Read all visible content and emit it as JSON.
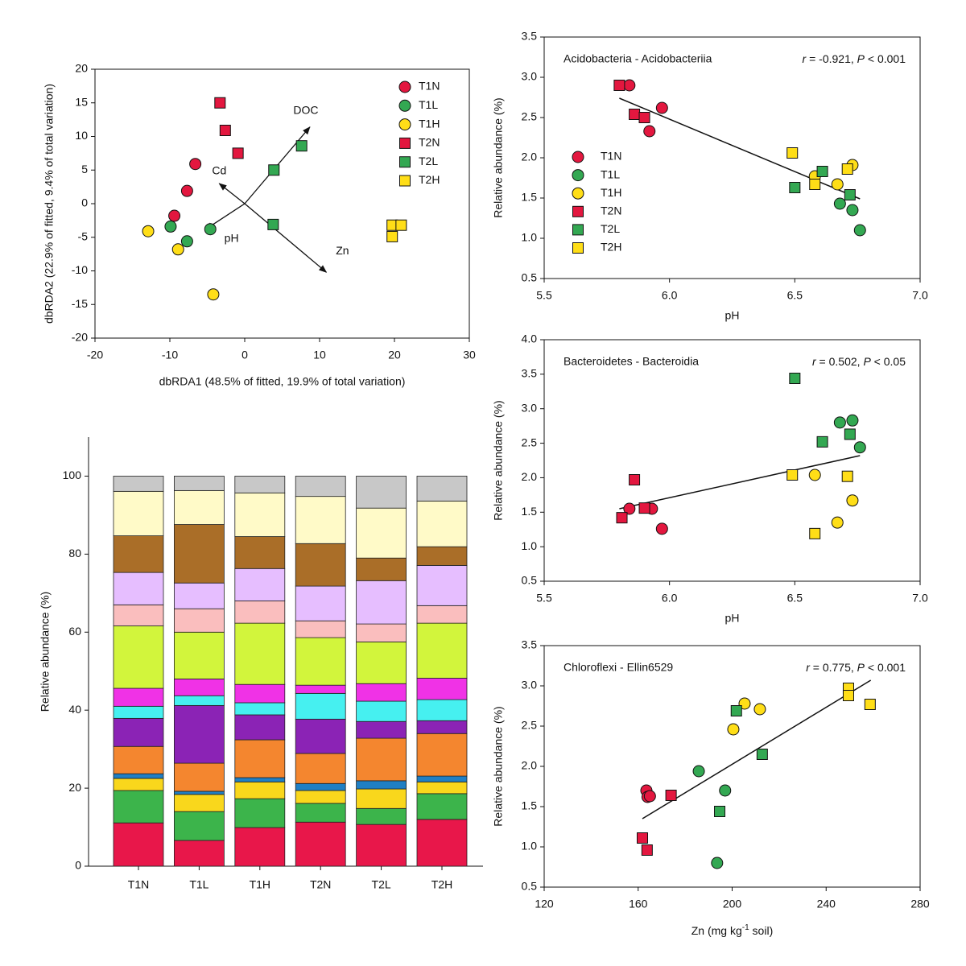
{
  "chart_data": [
    {
      "type": "scatter",
      "xlabel": "dbRDA1 (48.5% of fitted, 19.9% of total variation)",
      "ylabel": "dbRDA2 (22.9% of fitted, 9.4% of total variation)",
      "xlim": [
        -20,
        30
      ],
      "ylim": [
        -20,
        20
      ],
      "xticks": [
        -20,
        -10,
        0,
        10,
        20,
        30
      ],
      "yticks": [
        -20,
        -15,
        -10,
        -5,
        0,
        5,
        10,
        15,
        20
      ],
      "legend": "upper right",
      "series": [
        {
          "name": "T1N",
          "color": "#e3173f",
          "marker": "circle",
          "x": [
            -6.6,
            -7.7,
            -9.4
          ],
          "values": [
            5.9,
            1.9,
            -1.8
          ]
        },
        {
          "name": "T1L",
          "color": "#33a852",
          "marker": "circle",
          "x": [
            -9.9,
            -7.7,
            -4.6
          ],
          "values": [
            -3.4,
            -5.6,
            -3.8
          ]
        },
        {
          "name": "T1H",
          "color": "#ffde17",
          "marker": "circle",
          "x": [
            -12.9,
            -8.9,
            -4.2
          ],
          "values": [
            -4.1,
            -6.8,
            -13.5
          ]
        },
        {
          "name": "T2N",
          "color": "#e3173f",
          "marker": "square",
          "x": [
            -3.3,
            -2.6,
            -0.9
          ],
          "values": [
            15.0,
            10.9,
            7.5
          ]
        },
        {
          "name": "T2L",
          "color": "#33a852",
          "marker": "square",
          "x": [
            7.6,
            3.9,
            3.8
          ],
          "values": [
            8.6,
            5.0,
            -3.1
          ]
        },
        {
          "name": "T2H",
          "color": "#ffde17",
          "marker": "square",
          "x": [
            19.7,
            20.9,
            19.7
          ],
          "values": [
            -3.2,
            -3.2,
            -4.9
          ]
        }
      ],
      "arrows": [
        {
          "label": "DOC",
          "x": 8.7,
          "y": 11.4
        },
        {
          "label": "Cd",
          "x": -3.4,
          "y": 3.0
        },
        {
          "label": "pH",
          "x": -5.2,
          "y": -3.8
        },
        {
          "label": "Zn",
          "x": 10.9,
          "y": -10.2
        }
      ]
    },
    {
      "type": "bar",
      "stacked": true,
      "ylabel": "Relative abundance (%)",
      "ylim": [
        0,
        110
      ],
      "yticks": [
        0,
        20,
        40,
        60,
        80,
        100
      ],
      "categories": [
        "T1N",
        "T1L",
        "T1H",
        "T2N",
        "T2L",
        "T2H"
      ],
      "series": [
        {
          "color": "#e8174a",
          "values": [
            11.1,
            6.6,
            9.9,
            11.3,
            10.7,
            12.0
          ]
        },
        {
          "color": "#3cb44b",
          "values": [
            8.3,
            7.4,
            7.4,
            4.8,
            4.1,
            6.6
          ]
        },
        {
          "color": "#f9d71c",
          "values": [
            3.1,
            4.4,
            4.3,
            3.3,
            5.0,
            3.0
          ]
        },
        {
          "color": "#1f7fc4",
          "values": [
            1.2,
            0.8,
            1.1,
            1.8,
            2.1,
            1.5
          ]
        },
        {
          "color": "#f4862f",
          "values": [
            7.0,
            7.2,
            9.7,
            7.7,
            10.9,
            10.9
          ]
        },
        {
          "color": "#8b23b5",
          "values": [
            7.2,
            14.8,
            6.4,
            8.8,
            4.3,
            3.3
          ]
        },
        {
          "color": "#46f0f0",
          "values": [
            3.1,
            2.5,
            3.1,
            6.6,
            5.2,
            5.4
          ]
        },
        {
          "color": "#f032e6",
          "values": [
            4.6,
            4.3,
            4.7,
            2.1,
            4.5,
            5.5
          ]
        },
        {
          "color": "#d2f53c",
          "values": [
            16.0,
            12.0,
            15.7,
            12.2,
            10.7,
            14.1
          ]
        },
        {
          "color": "#fabebe",
          "values": [
            5.4,
            6.0,
            5.7,
            4.3,
            4.6,
            4.5
          ]
        },
        {
          "color": "#e6beff",
          "values": [
            8.3,
            6.6,
            8.3,
            8.9,
            11.1,
            10.3
          ]
        },
        {
          "color": "#aa6e28",
          "values": [
            9.4,
            15.0,
            8.2,
            10.9,
            5.8,
            4.8
          ]
        },
        {
          "color": "#fffac8",
          "values": [
            11.4,
            8.7,
            11.2,
            12.1,
            12.8,
            11.7
          ]
        },
        {
          "color": "#c8c8c8",
          "values": [
            3.9,
            3.7,
            4.3,
            5.2,
            8.2,
            6.4
          ]
        }
      ]
    },
    {
      "type": "scatter",
      "title": "Acidobacteria - Acidobacteriia",
      "stat": [
        "r",
        " = -0.921, ",
        "P",
        " < 0.001"
      ],
      "xlabel": "pH",
      "ylabel": "Relative abundance (%)",
      "xlim": [
        5.5,
        7.0
      ],
      "ylim": [
        0.5,
        3.5
      ],
      "xticks": [
        5.5,
        {
          "value": 6,
          "label": "6.0"
        },
        6.5,
        {
          "value": 7,
          "label": "7.0"
        }
      ],
      "yticks": [
        0.5,
        {
          "value": 1,
          "label": "1.0"
        },
        1.5,
        {
          "value": 2,
          "label": "2.0"
        },
        2.5,
        {
          "value": 3,
          "label": "3.0"
        },
        3.5
      ],
      "legend": "center left",
      "series": [
        {
          "name": "T1N",
          "color": "#e3173f",
          "marker": "circle",
          "x": [
            5.84,
            5.97,
            5.92
          ],
          "values": [
            2.9,
            2.62,
            2.33
          ]
        },
        {
          "name": "T1L",
          "color": "#33a852",
          "marker": "circle",
          "x": [
            6.68,
            6.73,
            6.76
          ],
          "values": [
            1.43,
            1.35,
            1.1
          ]
        },
        {
          "name": "T1H",
          "color": "#ffde17",
          "marker": "circle",
          "x": [
            6.58,
            6.67,
            6.73
          ],
          "values": [
            1.77,
            1.67,
            1.91
          ]
        },
        {
          "name": "T2N",
          "color": "#e3173f",
          "marker": "square",
          "x": [
            5.8,
            5.86,
            5.9
          ],
          "values": [
            2.9,
            2.54,
            2.5
          ]
        },
        {
          "name": "T2L",
          "color": "#33a852",
          "marker": "square",
          "x": [
            6.61,
            6.5,
            6.72
          ],
          "values": [
            1.83,
            1.63,
            1.54
          ]
        },
        {
          "name": "T2H",
          "color": "#ffde17",
          "marker": "square",
          "x": [
            6.49,
            6.58,
            6.71
          ],
          "values": [
            2.06,
            1.67,
            1.86
          ]
        }
      ],
      "fit_line": {
        "x": [
          5.8,
          6.76
        ],
        "y": [
          2.74,
          1.49
        ]
      }
    },
    {
      "type": "scatter",
      "title": "Bacteroidetes - Bacteroidia",
      "stat": [
        "r",
        " = 0.502, ",
        "P",
        " < 0.05"
      ],
      "xlabel": "pH",
      "ylabel": "Relative abundance (%)",
      "xlim": [
        5.5,
        7.0
      ],
      "ylim": [
        0.5,
        4.0
      ],
      "xticks": [
        5.5,
        {
          "value": 6,
          "label": "6.0"
        },
        6.5,
        {
          "value": 7,
          "label": "7.0"
        }
      ],
      "yticks": [
        0.5,
        {
          "value": 1,
          "label": "1.0"
        },
        1.5,
        {
          "value": 2,
          "label": "2.0"
        },
        2.5,
        {
          "value": 3,
          "label": "3.0"
        },
        3.5,
        {
          "value": 4,
          "label": "4.0"
        }
      ],
      "series": [
        {
          "color": "#e3173f",
          "marker": "circle",
          "x": [
            5.93,
            5.97,
            5.84
          ],
          "values": [
            1.55,
            1.26,
            1.55
          ]
        },
        {
          "color": "#33a852",
          "marker": "circle",
          "x": [
            6.68,
            6.73,
            6.76
          ],
          "values": [
            2.8,
            2.83,
            2.44
          ]
        },
        {
          "color": "#ffde17",
          "marker": "circle",
          "x": [
            6.58,
            6.67,
            6.73
          ],
          "values": [
            2.04,
            1.35,
            1.67
          ]
        },
        {
          "color": "#e3173f",
          "marker": "square",
          "x": [
            5.86,
            5.9,
            5.81
          ],
          "values": [
            1.97,
            1.56,
            1.42
          ]
        },
        {
          "color": "#33a852",
          "marker": "square",
          "x": [
            6.5,
            6.61,
            6.72
          ],
          "values": [
            3.44,
            2.52,
            2.63
          ]
        },
        {
          "color": "#ffde17",
          "marker": "square",
          "x": [
            6.49,
            6.58,
            6.71
          ],
          "values": [
            2.04,
            1.19,
            2.02
          ]
        }
      ],
      "fit_line": {
        "x": [
          5.8,
          6.76
        ],
        "y": [
          1.55,
          2.32
        ]
      }
    },
    {
      "type": "scatter",
      "title": "Chloroflexi - Ellin6529",
      "stat": [
        "r",
        " = 0.775, ",
        "P",
        " < 0.001"
      ],
      "xlabel": [
        "Zn (mg kg",
        "-1",
        " soil)"
      ],
      "ylabel": "Relative abundance (%)",
      "xlim": [
        120,
        280
      ],
      "ylim": [
        0.5,
        3.5
      ],
      "xticks": [
        120,
        160,
        200,
        240,
        280
      ],
      "yticks": [
        0.5,
        {
          "value": 1,
          "label": "1.0"
        },
        1.5,
        {
          "value": 2,
          "label": "2.0"
        },
        2.5,
        {
          "value": 3,
          "label": "3.0"
        },
        3.5
      ],
      "series": [
        {
          "color": "#e3173f",
          "marker": "circle",
          "x": [
            163.5,
            164,
            165
          ],
          "values": [
            1.7,
            1.62,
            1.63
          ]
        },
        {
          "color": "#33a852",
          "marker": "circle",
          "x": [
            185.8,
            197,
            193.6
          ],
          "values": [
            1.94,
            1.7,
            0.8
          ]
        },
        {
          "color": "#ffde17",
          "marker": "circle",
          "x": [
            205.3,
            211.8,
            200.5
          ],
          "values": [
            2.78,
            2.71,
            2.46
          ]
        },
        {
          "color": "#e3173f",
          "marker": "square",
          "x": [
            161.8,
            163.8,
            174
          ],
          "values": [
            1.11,
            0.96,
            1.64
          ]
        },
        {
          "color": "#33a852",
          "marker": "square",
          "x": [
            201.8,
            212.8,
            194.7
          ],
          "values": [
            2.69,
            2.15,
            1.44
          ]
        },
        {
          "color": "#ffde17",
          "marker": "square",
          "x": [
            249.5,
            249.5,
            258.7
          ],
          "values": [
            2.97,
            2.88,
            2.77
          ]
        }
      ],
      "fit_line": {
        "x": [
          161.8,
          259
        ],
        "y": [
          1.35,
          3.07
        ]
      }
    }
  ]
}
